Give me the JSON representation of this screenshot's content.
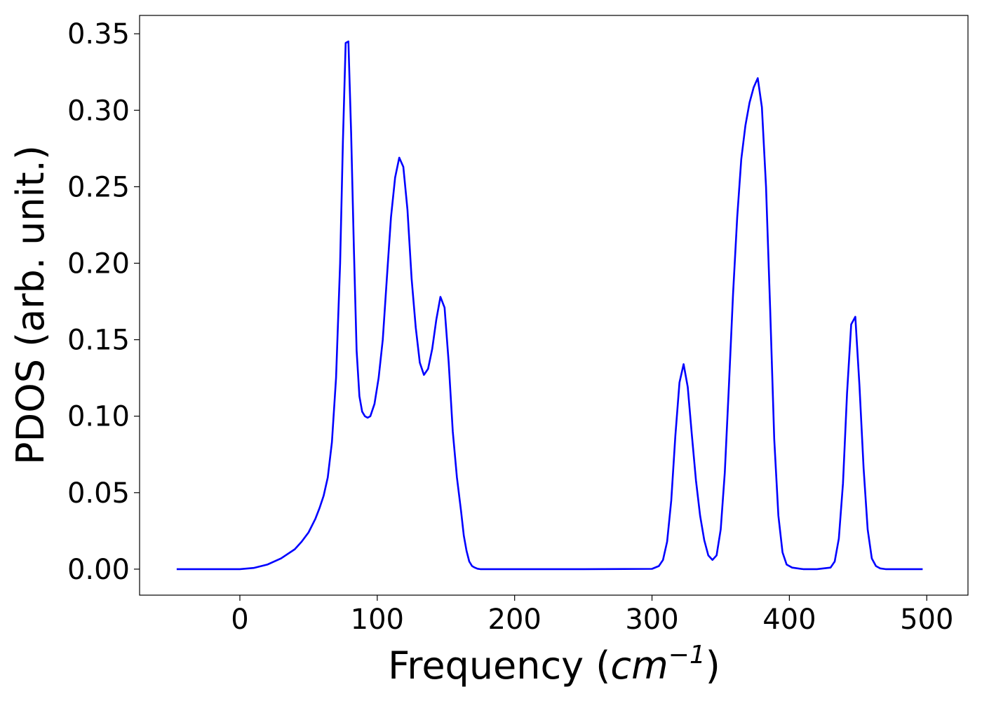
{
  "chart_data": {
    "type": "line",
    "title": "",
    "xlabel": "Frequency",
    "xlabel_unit_symbol": "cm",
    "xlabel_unit_exponent": "−1",
    "ylabel": "PDOS (arb. unit.)",
    "xlim": [
      -73,
      530
    ],
    "ylim": [
      -0.017,
      0.362
    ],
    "xticks": [
      0,
      100,
      200,
      300,
      400,
      500
    ],
    "yticks": [
      0.0,
      0.05,
      0.1,
      0.15,
      0.2,
      0.25,
      0.3,
      0.35
    ],
    "ytick_labels": [
      "0.00",
      "0.05",
      "0.10",
      "0.15",
      "0.20",
      "0.25",
      "0.30",
      "0.35"
    ],
    "grid": false,
    "series": [
      {
        "color": "#0000ff",
        "x": [
          -46,
          -20,
          0,
          10,
          20,
          30,
          40,
          45,
          50,
          55,
          58,
          61,
          64,
          67,
          70,
          73,
          75,
          77,
          79,
          81,
          83,
          85,
          87,
          89,
          91,
          93,
          95,
          98,
          101,
          104,
          107,
          110,
          113,
          116,
          119,
          122,
          125,
          128,
          131,
          134,
          137,
          140,
          143,
          146,
          149,
          152,
          155,
          158,
          161,
          163,
          165,
          167,
          169,
          171,
          173,
          175,
          177,
          180,
          200,
          250,
          300,
          305,
          308,
          311,
          314,
          317,
          320,
          323,
          326,
          329,
          332,
          335,
          338,
          341,
          344,
          347,
          350,
          353,
          356,
          359,
          362,
          365,
          368,
          371,
          374,
          377,
          380,
          383,
          386,
          389,
          392,
          395,
          398,
          402,
          410,
          420,
          430,
          433,
          436,
          439,
          442,
          445,
          448,
          451,
          454,
          457,
          460,
          463,
          466,
          470,
          497
        ],
        "y": [
          0,
          0,
          0,
          0.0008,
          0.003,
          0.007,
          0.013,
          0.018,
          0.024,
          0.033,
          0.04,
          0.048,
          0.06,
          0.083,
          0.125,
          0.2,
          0.28,
          0.344,
          0.345,
          0.285,
          0.21,
          0.143,
          0.113,
          0.103,
          0.1,
          0.099,
          0.1,
          0.108,
          0.125,
          0.15,
          0.19,
          0.23,
          0.256,
          0.269,
          0.263,
          0.235,
          0.19,
          0.158,
          0.135,
          0.127,
          0.131,
          0.144,
          0.163,
          0.178,
          0.171,
          0.135,
          0.09,
          0.06,
          0.038,
          0.022,
          0.012,
          0.005,
          0.002,
          0.001,
          0.0003,
          0,
          0,
          0,
          0,
          0,
          0.0002,
          0.002,
          0.006,
          0.018,
          0.045,
          0.087,
          0.122,
          0.134,
          0.119,
          0.088,
          0.058,
          0.035,
          0.019,
          0.009,
          0.006,
          0.009,
          0.026,
          0.063,
          0.12,
          0.18,
          0.23,
          0.268,
          0.29,
          0.305,
          0.315,
          0.321,
          0.302,
          0.25,
          0.17,
          0.085,
          0.035,
          0.011,
          0.003,
          0.001,
          0,
          0,
          0.001,
          0.005,
          0.02,
          0.056,
          0.115,
          0.16,
          0.165,
          0.12,
          0.066,
          0.026,
          0.007,
          0.002,
          0.0005,
          0,
          0
        ]
      }
    ]
  }
}
